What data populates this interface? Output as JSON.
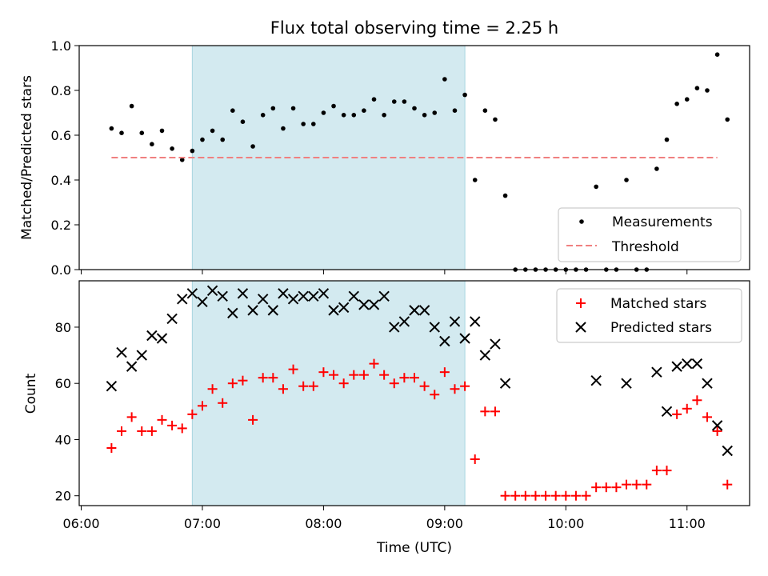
{
  "chart_data": [
    {
      "type": "scatter",
      "title": "Flux total observing time = 2.25 h",
      "xlabel": "",
      "ylabel": "Matched/Predicted stars",
      "xlim": [
        "05:59",
        "11:31"
      ],
      "ylim": [
        0,
        1.0
      ],
      "yticks": [
        "0.0",
        "0.2",
        "0.4",
        "0.6",
        "0.8",
        "1.0"
      ],
      "shaded_interval": [
        "06:55",
        "09:10"
      ],
      "shade_color": "#d3eaf0",
      "series": [
        {
          "name": "Measurements",
          "marker": "dot",
          "color": "#000000",
          "points": [
            [
              "06:15",
              0.63
            ],
            [
              "06:20",
              0.61
            ],
            [
              "06:25",
              0.73
            ],
            [
              "06:30",
              0.61
            ],
            [
              "06:35",
              0.56
            ],
            [
              "06:40",
              0.62
            ],
            [
              "06:45",
              0.54
            ],
            [
              "06:50",
              0.49
            ],
            [
              "06:55",
              0.53
            ],
            [
              "07:00",
              0.58
            ],
            [
              "07:05",
              0.62
            ],
            [
              "07:10",
              0.58
            ],
            [
              "07:15",
              0.71
            ],
            [
              "07:20",
              0.66
            ],
            [
              "07:25",
              0.55
            ],
            [
              "07:30",
              0.69
            ],
            [
              "07:35",
              0.72
            ],
            [
              "07:40",
              0.63
            ],
            [
              "07:45",
              0.72
            ],
            [
              "07:50",
              0.65
            ],
            [
              "07:55",
              0.65
            ],
            [
              "08:00",
              0.7
            ],
            [
              "08:05",
              0.73
            ],
            [
              "08:10",
              0.69
            ],
            [
              "08:15",
              0.69
            ],
            [
              "08:20",
              0.71
            ],
            [
              "08:25",
              0.76
            ],
            [
              "08:30",
              0.69
            ],
            [
              "08:35",
              0.75
            ],
            [
              "08:40",
              0.75
            ],
            [
              "08:45",
              0.72
            ],
            [
              "08:50",
              0.69
            ],
            [
              "08:55",
              0.7
            ],
            [
              "09:00",
              0.85
            ],
            [
              "09:05",
              0.71
            ],
            [
              "09:10",
              0.78
            ],
            [
              "09:15",
              0.4
            ],
            [
              "09:20",
              0.71
            ],
            [
              "09:25",
              0.67
            ],
            [
              "09:30",
              0.33
            ],
            [
              "09:35",
              0.0
            ],
            [
              "09:40",
              0.0
            ],
            [
              "09:45",
              0.0
            ],
            [
              "09:50",
              0.0
            ],
            [
              "09:55",
              0.0
            ],
            [
              "10:00",
              0.0
            ],
            [
              "10:05",
              0.0
            ],
            [
              "10:10",
              0.0
            ],
            [
              "10:15",
              0.37
            ],
            [
              "10:20",
              0.0
            ],
            [
              "10:25",
              0.0
            ],
            [
              "10:30",
              0.4
            ],
            [
              "10:35",
              0.0
            ],
            [
              "10:40",
              0.0
            ],
            [
              "10:45",
              0.45
            ],
            [
              "10:50",
              0.58
            ],
            [
              "10:55",
              0.74
            ],
            [
              "11:00",
              0.76
            ],
            [
              "11:05",
              0.81
            ],
            [
              "11:10",
              0.8
            ],
            [
              "11:15",
              0.96
            ],
            [
              "11:20",
              0.67
            ]
          ]
        },
        {
          "name": "Threshold",
          "kind": "dashed-line",
          "color": "#f08080",
          "points": [
            [
              "06:15",
              0.5
            ],
            [
              "11:15",
              0.5
            ]
          ]
        }
      ],
      "legend": [
        "Measurements",
        "Threshold"
      ],
      "legend_loc": "lower right"
    },
    {
      "type": "scatter",
      "title": "",
      "xlabel": "Time (UTC)",
      "ylabel": "Count",
      "xlim": [
        "05:59",
        "11:31"
      ],
      "ylim": [
        16.5,
        96.5
      ],
      "yticks": [
        "20",
        "40",
        "60",
        "80"
      ],
      "xticks": [
        "06:00",
        "07:00",
        "08:00",
        "09:00",
        "10:00",
        "11:00"
      ],
      "shaded_interval": [
        "06:55",
        "09:10"
      ],
      "shade_color": "#d3eaf0",
      "series": [
        {
          "name": "Matched stars",
          "marker": "plus",
          "color": "#ff0000",
          "points": [
            [
              "06:15",
              37
            ],
            [
              "06:20",
              43
            ],
            [
              "06:25",
              48
            ],
            [
              "06:30",
              43
            ],
            [
              "06:35",
              43
            ],
            [
              "06:40",
              47
            ],
            [
              "06:45",
              45
            ],
            [
              "06:50",
              44
            ],
            [
              "06:55",
              49
            ],
            [
              "07:00",
              52
            ],
            [
              "07:05",
              58
            ],
            [
              "07:10",
              53
            ],
            [
              "07:15",
              60
            ],
            [
              "07:20",
              61
            ],
            [
              "07:25",
              47
            ],
            [
              "07:30",
              62
            ],
            [
              "07:35",
              62
            ],
            [
              "07:40",
              58
            ],
            [
              "07:45",
              65
            ],
            [
              "07:50",
              59
            ],
            [
              "07:55",
              59
            ],
            [
              "08:00",
              64
            ],
            [
              "08:05",
              63
            ],
            [
              "08:10",
              60
            ],
            [
              "08:15",
              63
            ],
            [
              "08:20",
              63
            ],
            [
              "08:25",
              67
            ],
            [
              "08:30",
              63
            ],
            [
              "08:35",
              60
            ],
            [
              "08:40",
              62
            ],
            [
              "08:45",
              62
            ],
            [
              "08:50",
              59
            ],
            [
              "08:55",
              56
            ],
            [
              "09:00",
              64
            ],
            [
              "09:05",
              58
            ],
            [
              "09:10",
              59
            ],
            [
              "09:15",
              33
            ],
            [
              "09:20",
              50
            ],
            [
              "09:25",
              50
            ],
            [
              "09:30",
              20
            ],
            [
              "09:35",
              20
            ],
            [
              "09:40",
              20
            ],
            [
              "09:45",
              20
            ],
            [
              "09:50",
              20
            ],
            [
              "09:55",
              20
            ],
            [
              "10:00",
              20
            ],
            [
              "10:05",
              20
            ],
            [
              "10:10",
              20
            ],
            [
              "10:15",
              23
            ],
            [
              "10:20",
              23
            ],
            [
              "10:25",
              23
            ],
            [
              "10:30",
              24
            ],
            [
              "10:35",
              24
            ],
            [
              "10:40",
              24
            ],
            [
              "10:45",
              29
            ],
            [
              "10:50",
              29
            ],
            [
              "10:55",
              49
            ],
            [
              "11:00",
              51
            ],
            [
              "11:05",
              54
            ],
            [
              "11:10",
              48
            ],
            [
              "11:15",
              43
            ],
            [
              "11:20",
              24
            ]
          ]
        },
        {
          "name": "Predicted stars",
          "marker": "x",
          "color": "#000000",
          "points": [
            [
              "06:15",
              59
            ],
            [
              "06:20",
              71
            ],
            [
              "06:25",
              66
            ],
            [
              "06:30",
              70
            ],
            [
              "06:35",
              77
            ],
            [
              "06:40",
              76
            ],
            [
              "06:45",
              83
            ],
            [
              "06:50",
              90
            ],
            [
              "06:55",
              92
            ],
            [
              "07:00",
              89
            ],
            [
              "07:05",
              93
            ],
            [
              "07:10",
              91
            ],
            [
              "07:15",
              85
            ],
            [
              "07:20",
              92
            ],
            [
              "07:25",
              86
            ],
            [
              "07:30",
              90
            ],
            [
              "07:35",
              86
            ],
            [
              "07:40",
              92
            ],
            [
              "07:45",
              90
            ],
            [
              "07:50",
              91
            ],
            [
              "07:55",
              91
            ],
            [
              "08:00",
              92
            ],
            [
              "08:05",
              86
            ],
            [
              "08:10",
              87
            ],
            [
              "08:15",
              91
            ],
            [
              "08:20",
              88
            ],
            [
              "08:25",
              88
            ],
            [
              "08:30",
              91
            ],
            [
              "08:35",
              80
            ],
            [
              "08:40",
              82
            ],
            [
              "08:45",
              86
            ],
            [
              "08:50",
              86
            ],
            [
              "08:55",
              80
            ],
            [
              "09:00",
              75
            ],
            [
              "09:05",
              82
            ],
            [
              "09:10",
              76
            ],
            [
              "09:15",
              82
            ],
            [
              "09:20",
              70
            ],
            [
              "09:25",
              74
            ],
            [
              "09:30",
              60
            ],
            [
              "10:15",
              61
            ],
            [
              "10:30",
              60
            ],
            [
              "10:45",
              64
            ],
            [
              "10:50",
              50
            ],
            [
              "10:55",
              66
            ],
            [
              "11:00",
              67
            ],
            [
              "11:05",
              67
            ],
            [
              "11:10",
              60
            ],
            [
              "11:15",
              45
            ],
            [
              "11:20",
              36
            ]
          ]
        }
      ],
      "legend": [
        "Matched stars",
        "Predicted stars"
      ],
      "legend_loc": "upper right"
    }
  ]
}
